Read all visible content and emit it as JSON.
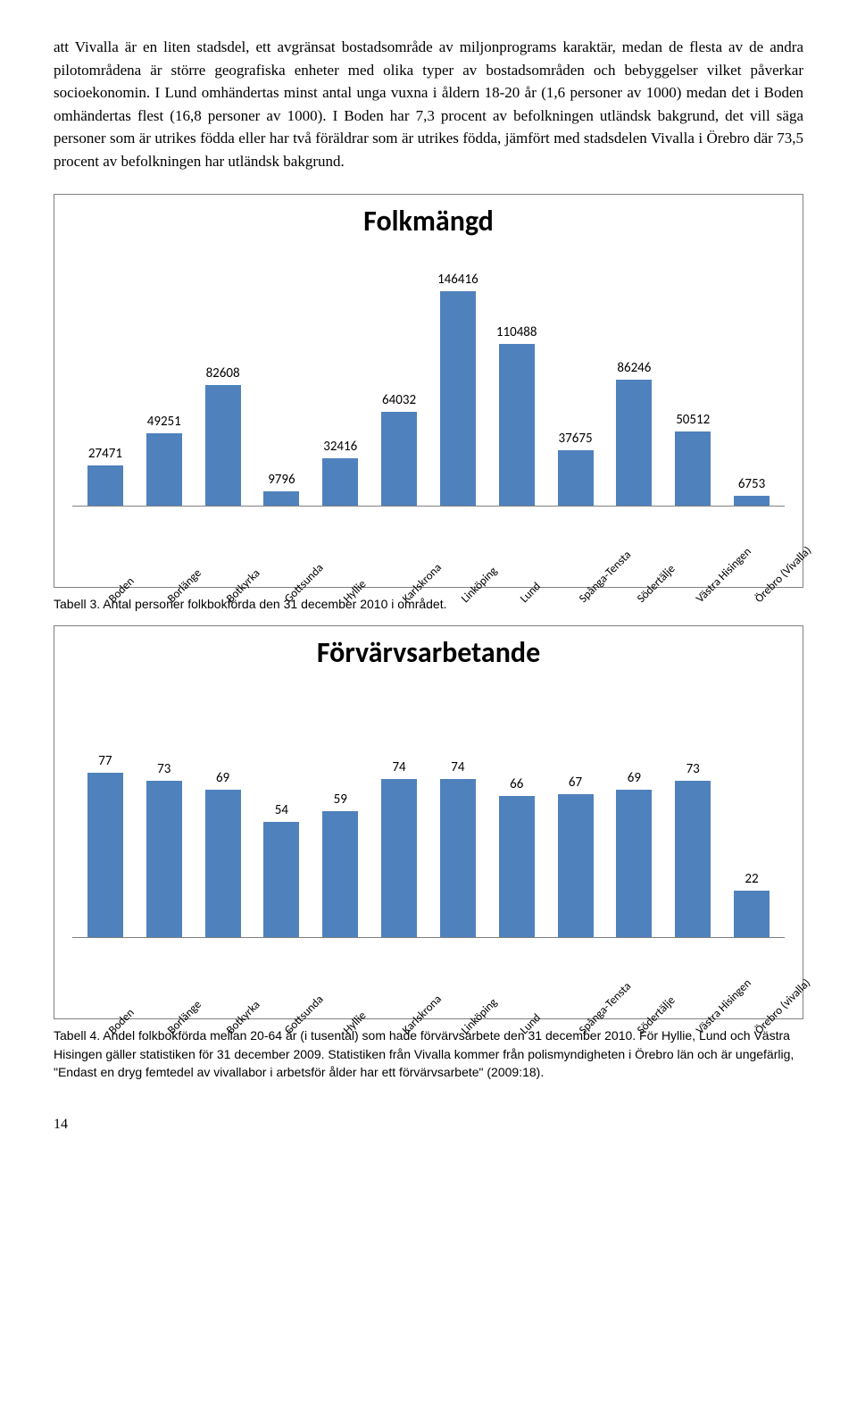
{
  "paragraph": "att Vivalla är en liten stadsdel, ett avgränsat bostadsområde av miljonprograms karaktär, medan de flesta av de andra pilotområdena är större geografiska enheter med olika typer av bostadsområden och bebyggelser vilket påverkar socioekonomin. I Lund omhändertas minst antal unga vuxna i åldern 18-20 år (1,6 personer av 1000) medan det i Boden omhändertas flest (16,8 personer av 1000). I Boden har 7,3 procent av befolkningen utländsk bakgrund, det vill säga personer som är utrikes födda eller har två föräldrar som är utrikes födda, jämfört med stadsdelen Vivalla i Örebro där 73,5 procent av befolkningen har utländsk bakgrund.",
  "chart1": {
    "type": "bar",
    "title": "Folkmängd",
    "title_fontsize": 32,
    "categories": [
      "Boden",
      "Borlänge",
      "Botkyrka",
      "Gottsunda",
      "Hyllie",
      "Karlskrona",
      "Linköping",
      "Lund",
      "Spånga-Tensta",
      "Södertälje",
      "Västra Hisingen",
      "Örebro (Vivalla)"
    ],
    "values": [
      27471,
      49251,
      82608,
      9796,
      32416,
      64032,
      146416,
      110488,
      37675,
      86246,
      50512,
      6753
    ],
    "bar_color": "#4f81bd",
    "value_fontsize": 15,
    "label_fontsize": 13,
    "bars_area_height": 280,
    "ymax": 146416,
    "label_region_height": 90,
    "background_color": "#ffffff",
    "border_color": "#808080"
  },
  "caption1": "Tabell 3. Antal personer folkbokförda den 31 december 2010 i området.",
  "chart2": {
    "type": "bar",
    "title": "Förvärvsarbetande",
    "title_fontsize": 32,
    "categories": [
      "Boden",
      "Borlänge",
      "Botkyrka",
      "Gottsunda",
      "Hyllie",
      "Karlskrona",
      "Linköping",
      "Lund",
      "Spånga-Tensta",
      "Södertälje",
      "Västra Hisingen",
      "Örebro (vivalla)"
    ],
    "values": [
      77,
      73,
      69,
      54,
      59,
      74,
      74,
      66,
      67,
      69,
      73,
      22
    ],
    "bar_color": "#4f81bd",
    "value_fontsize": 15,
    "label_fontsize": 13,
    "bars_area_height": 280,
    "ymax": 100,
    "label_region_height": 90,
    "background_color": "#ffffff",
    "border_color": "#808080"
  },
  "caption2": "Tabell 4. Andel folkbokförda mellan 20-64 år (i tusental) som hade förvärvsarbete den 31 december 2010. För Hyllie, Lund och Västra Hisingen gäller statistiken för 31 december 2009. Statistiken från Vivalla kommer från polismyndigheten i Örebro län och är ungefärlig, \"Endast en dryg femtedel av vivallabor i arbetsför ålder har ett förvärvsarbete\" (2009:18).",
  "page_number": "14"
}
